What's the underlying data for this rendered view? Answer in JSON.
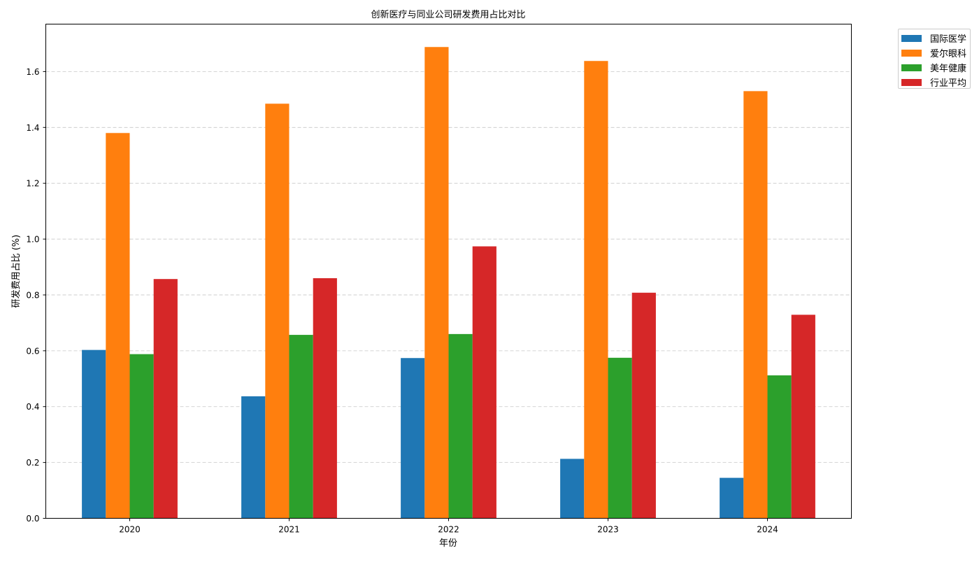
{
  "chart_data": {
    "type": "bar",
    "title": "创新医疗与同业公司研发费用占比对比",
    "xlabel": "年份",
    "ylabel": "研发费用占比 (%)",
    "categories": [
      "2020",
      "2021",
      "2022",
      "2023",
      "2024"
    ],
    "ylim": [
      0,
      1.77
    ],
    "yticks": [
      "0.0",
      "0.2",
      "0.4",
      "0.6",
      "0.8",
      "1.0",
      "1.2",
      "1.4",
      "1.6"
    ],
    "grid": "y-dashed",
    "legend_position": "upper-right-outside",
    "series": [
      {
        "name": "国际医学",
        "color": "#1f77b4",
        "values": [
          0.603,
          0.437,
          0.574,
          0.213,
          0.145
        ]
      },
      {
        "name": "爱尔眼科",
        "color": "#ff7f0e",
        "values": [
          1.38,
          1.485,
          1.688,
          1.638,
          1.53
        ]
      },
      {
        "name": "美年健康",
        "color": "#2ca02c",
        "values": [
          0.588,
          0.657,
          0.66,
          0.575,
          0.512
        ]
      },
      {
        "name": "行业平均",
        "color": "#d62728",
        "values": [
          0.857,
          0.86,
          0.974,
          0.808,
          0.729
        ]
      }
    ]
  }
}
